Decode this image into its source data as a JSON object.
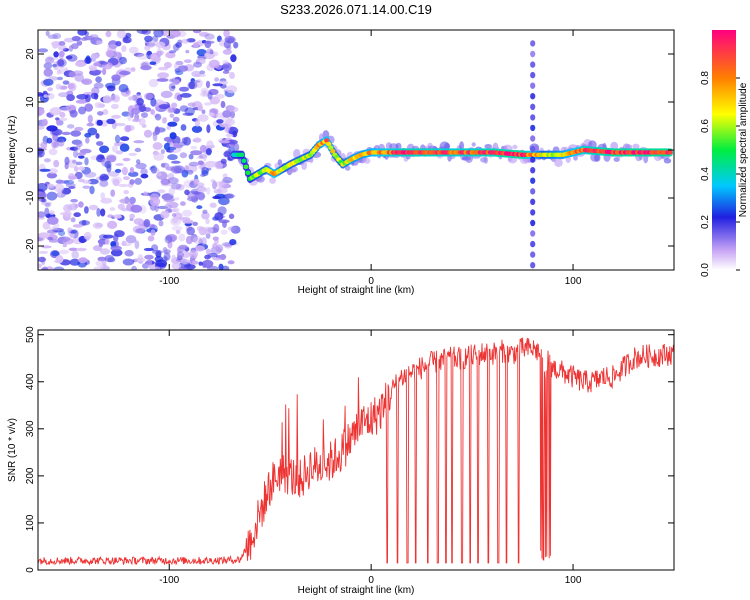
{
  "page_title": "S233.2026.071.14.00.C19",
  "chart_data": [
    {
      "type": "heatmap",
      "title": "S233.2026.071.14.00.C19",
      "xlabel": "Height of straight line (km)",
      "ylabel": "Frequency (Hz)",
      "xlim": [
        -165,
        150
      ],
      "ylim": [
        -25,
        25
      ],
      "xticks": [
        -100,
        0,
        100
      ],
      "xtick_labels": [
        "-100",
        "0",
        "100"
      ],
      "yticks": [
        20,
        10,
        0,
        -10,
        -20
      ],
      "ytick_labels": [
        "20",
        "10",
        "0",
        "-10",
        "-20"
      ],
      "colorbar": {
        "label": "Normalized spectral amplitude",
        "range": [
          0,
          1
        ],
        "ticks": [
          0.0,
          0.2,
          0.4,
          0.6,
          0.8
        ],
        "tick_labels": [
          "0.0",
          "0.2",
          "0.4",
          "0.6",
          "0.8"
        ]
      },
      "noise_region_x": [
        -165,
        -67
      ],
      "ridge": {
        "x": [
          -68,
          -64,
          -60,
          -56,
          -52,
          -48,
          -44,
          -40,
          -35,
          -30,
          -26,
          -22,
          -18,
          -14,
          -10,
          -5,
          0,
          10,
          20,
          40,
          60,
          75,
          85,
          95,
          105,
          120,
          148
        ],
        "freq": [
          -1,
          -1,
          -6,
          -5,
          -4,
          -5,
          -4,
          -3,
          -2,
          -1,
          1,
          2,
          -1,
          -3,
          -2,
          -1,
          -0.5,
          -0.5,
          -0.5,
          -0.5,
          -0.5,
          -1,
          -1,
          -1,
          0,
          -0.5,
          -0.5
        ],
        "amp": [
          0.4,
          0.5,
          0.5,
          0.6,
          0.6,
          0.8,
          0.6,
          0.6,
          0.6,
          0.6,
          0.7,
          0.8,
          0.6,
          0.6,
          0.7,
          0.7,
          0.75,
          0.85,
          0.9,
          0.85,
          0.9,
          0.95,
          0.6,
          0.7,
          0.85,
          0.95,
          0.95
        ]
      },
      "vertical_streak_x": 80
    },
    {
      "type": "line",
      "xlabel": "Height of straight line (km)",
      "ylabel": "SNR (10 * v/v)",
      "xlim": [
        -165,
        150
      ],
      "ylim": [
        0,
        510
      ],
      "xticks": [
        -100,
        0,
        100
      ],
      "xtick_labels": [
        "-100",
        "0",
        "100"
      ],
      "yticks": [
        0,
        100,
        200,
        300,
        400,
        500
      ],
      "ytick_labels": [
        "0",
        "100",
        "200",
        "300",
        "400",
        "500"
      ],
      "color": "#ee3333",
      "series": [
        {
          "name": "SNR",
          "x": [
            -165,
            -140,
            -120,
            -100,
            -80,
            -65,
            -60,
            -55,
            -50,
            -45,
            -40,
            -35,
            -30,
            -25,
            -20,
            -15,
            -10,
            -5,
            0,
            5,
            10,
            15,
            20,
            25,
            30,
            35,
            40,
            45,
            50,
            55,
            60,
            65,
            70,
            75,
            80,
            85,
            90,
            95,
            100,
            105,
            110,
            115,
            120,
            125,
            130,
            135,
            140,
            150
          ],
          "values": [
            20,
            20,
            20,
            20,
            20,
            22,
            60,
            120,
            180,
            210,
            200,
            190,
            220,
            220,
            230,
            250,
            280,
            310,
            320,
            340,
            380,
            410,
            420,
            430,
            440,
            445,
            450,
            450,
            455,
            460,
            460,
            465,
            460,
            470,
            470,
            460,
            430,
            420,
            410,
            400,
            400,
            410,
            410,
            430,
            450,
            455,
            455,
            460
          ],
          "dropouts_x": [
            8,
            13,
            18,
            22,
            28,
            33,
            37,
            40,
            45,
            49,
            53,
            58,
            63,
            67,
            73
          ]
        }
      ]
    }
  ]
}
